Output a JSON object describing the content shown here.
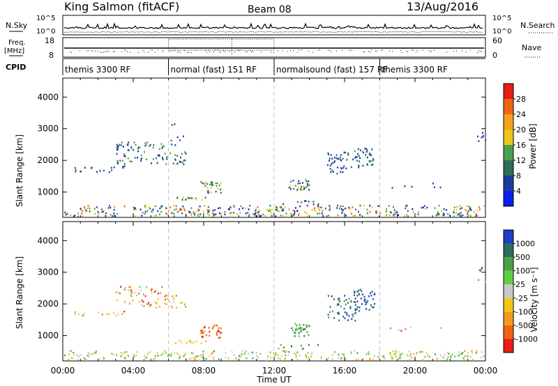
{
  "header": {
    "station": "King Salmon (fitACF)",
    "beam": "Beam 08",
    "date": "13/Aug/2016"
  },
  "top_panels": {
    "nsky_label": "N.Sky",
    "nsearch_label": "N.Search",
    "freq_label_1": "Freq.",
    "freq_label_2": "[MHz]",
    "nave_label": "Nave",
    "cpid_label": "CPID",
    "nsky_ticks": [
      "10^5",
      "10^0"
    ],
    "nsearch_ticks": [
      "10^5",
      "10^0"
    ],
    "freq_ticks": [
      "18",
      "8"
    ],
    "nave_ticks": [
      "60",
      "0"
    ],
    "cpid_segments": [
      {
        "label": "themis 3300 RF",
        "start_hour": 0,
        "end_hour": 6
      },
      {
        "label": "normal (fast) 151 RF",
        "start_hour": 6,
        "end_hour": 12
      },
      {
        "label": "normalsound (fast) 157 RF",
        "start_hour": 12,
        "end_hour": 18
      },
      {
        "label": "themis 3300 RF",
        "start_hour": 18,
        "end_hour": 24
      }
    ]
  },
  "chart_data": [
    {
      "type": "heatmap",
      "title": "Power",
      "ylabel": "Slant Range [km]",
      "xlabel": "Time UT",
      "xlim_hours": [
        0,
        24
      ],
      "ylim": [
        200,
        4600
      ],
      "x_tick_labels": [
        "00:00",
        "04:00",
        "08:00",
        "12:00",
        "16:00",
        "20:00",
        "00:00"
      ],
      "x_tick_hours": [
        0,
        4,
        8,
        12,
        16,
        20,
        24
      ],
      "y_tick_values": [
        1000,
        2000,
        3000,
        4000
      ],
      "y_tick_labels": [
        "1000",
        "2000",
        "3000",
        "4000"
      ],
      "colorbar": {
        "label": "Power [dB]",
        "range": [
          0,
          32
        ],
        "tick_values": [
          4,
          8,
          12,
          16,
          20,
          24,
          28
        ],
        "tick_labels": [
          "4",
          "8",
          "12",
          "16",
          "20",
          "24",
          "28"
        ],
        "colors": [
          "#0a1ef0",
          "#1e3c9e",
          "#2c6e5a",
          "#4aa04a",
          "#e8c61a",
          "#f5a01e",
          "#f06414",
          "#e81e14"
        ]
      },
      "dashed_hours": [
        6,
        12,
        18
      ],
      "regions": [
        {
          "t0": 0.0,
          "t1": 24.0,
          "r0": 250,
          "r1": 600,
          "density": 0.35,
          "vmin": 2,
          "vmax": 26
        },
        {
          "t0": 0.6,
          "t1": 3.5,
          "r0": 1650,
          "r1": 1850,
          "density": 0.25,
          "vmin": 4,
          "vmax": 10
        },
        {
          "t0": 3.0,
          "t1": 5.8,
          "r0": 1900,
          "r1": 2600,
          "density": 0.28,
          "vmin": 4,
          "vmax": 16
        },
        {
          "t0": 5.8,
          "t1": 7.0,
          "r0": 1900,
          "r1": 2300,
          "density": 0.35,
          "vmin": 4,
          "vmax": 14
        },
        {
          "t0": 6.0,
          "t1": 7.0,
          "r0": 2500,
          "r1": 3200,
          "density": 0.1,
          "vmin": 4,
          "vmax": 10
        },
        {
          "t0": 7.8,
          "t1": 9.0,
          "r0": 1000,
          "r1": 1350,
          "density": 0.55,
          "vmin": 6,
          "vmax": 20
        },
        {
          "t0": 6.3,
          "t1": 8.2,
          "r0": 780,
          "r1": 880,
          "density": 0.6,
          "vmin": 6,
          "vmax": 20
        },
        {
          "t0": 12.8,
          "t1": 14.0,
          "r0": 1050,
          "r1": 1450,
          "density": 0.5,
          "vmin": 4,
          "vmax": 18
        },
        {
          "t0": 12.2,
          "t1": 14.5,
          "r0": 600,
          "r1": 750,
          "density": 0.25,
          "vmin": 4,
          "vmax": 10
        },
        {
          "t0": 15.0,
          "t1": 16.6,
          "r0": 1600,
          "r1": 2300,
          "density": 0.3,
          "vmin": 4,
          "vmax": 12
        },
        {
          "t0": 16.5,
          "t1": 17.7,
          "r0": 1800,
          "r1": 2400,
          "density": 0.4,
          "vmin": 4,
          "vmax": 14
        },
        {
          "t0": 18.5,
          "t1": 21.5,
          "r0": 1150,
          "r1": 1300,
          "density": 0.12,
          "vmin": 4,
          "vmax": 8
        },
        {
          "t0": 23.5,
          "t1": 24.0,
          "r0": 2600,
          "r1": 3200,
          "density": 0.2,
          "vmin": 4,
          "vmax": 8
        }
      ]
    },
    {
      "type": "heatmap",
      "title": "Velocity",
      "ylabel": "Slant Range [km]",
      "xlabel": "Time UT",
      "xlim_hours": [
        0,
        24
      ],
      "ylim": [
        200,
        4600
      ],
      "x_tick_labels": [
        "00:00",
        "04:00",
        "08:00",
        "12:00",
        "16:00",
        "20:00",
        "00:00"
      ],
      "x_tick_hours": [
        0,
        4,
        8,
        12,
        16,
        20,
        24
      ],
      "y_tick_values": [
        1000,
        2000,
        3000,
        4000
      ],
      "y_tick_labels": [
        "1000",
        "2000",
        "3000",
        "4000"
      ],
      "colorbar": {
        "label": "Velocity [m s⁻¹]",
        "ticks": [
          "1000",
          "500",
          "100",
          "25",
          "-25",
          "-100",
          "-500",
          "-1000"
        ],
        "colors": [
          "#1e3cc8",
          "#2c6e5a",
          "#4aa04a",
          "#5cd03c",
          "#c8c8c8",
          "#f0c814",
          "#f59a1e",
          "#f06414",
          "#e81e14"
        ]
      },
      "dashed_hours": [
        6,
        12,
        18
      ],
      "regions": [
        {
          "t0": 0.0,
          "t1": 24.0,
          "r0": 250,
          "r1": 550,
          "density": 0.3,
          "cmin": 2,
          "cmax": 6
        },
        {
          "t0": 0.6,
          "t1": 3.5,
          "r0": 1650,
          "r1": 1850,
          "density": 0.2,
          "cmin": 3,
          "cmax": 8
        },
        {
          "t0": 3.0,
          "t1": 5.8,
          "r0": 1900,
          "r1": 2600,
          "density": 0.25,
          "cmin": 3,
          "cmax": 8
        },
        {
          "t0": 5.8,
          "t1": 7.0,
          "r0": 1900,
          "r1": 2300,
          "density": 0.3,
          "cmin": 3,
          "cmax": 7
        },
        {
          "t0": 7.8,
          "t1": 9.0,
          "r0": 950,
          "r1": 1350,
          "density": 0.6,
          "cmin": 6,
          "cmax": 8
        },
        {
          "t0": 6.3,
          "t1": 8.2,
          "r0": 780,
          "r1": 880,
          "density": 0.6,
          "cmin": 4,
          "cmax": 6
        },
        {
          "t0": 12.8,
          "t1": 14.0,
          "r0": 1000,
          "r1": 1450,
          "density": 0.5,
          "cmin": 1,
          "cmax": 3
        },
        {
          "t0": 12.2,
          "t1": 14.5,
          "r0": 600,
          "r1": 750,
          "density": 0.25,
          "cmin": 1,
          "cmax": 3
        },
        {
          "t0": 15.0,
          "t1": 16.6,
          "r0": 1500,
          "r1": 2300,
          "density": 0.3,
          "cmin": 0,
          "cmax": 2
        },
        {
          "t0": 16.5,
          "t1": 17.7,
          "r0": 1800,
          "r1": 2500,
          "density": 0.4,
          "cmin": 0,
          "cmax": 1
        },
        {
          "t0": 18.5,
          "t1": 21.5,
          "r0": 1150,
          "r1": 1300,
          "density": 0.12,
          "cmin": 4,
          "cmax": 8
        },
        {
          "t0": 23.5,
          "t1": 24.0,
          "r0": 2600,
          "r1": 3200,
          "density": 0.2,
          "cmin": 1,
          "cmax": 4
        }
      ]
    }
  ]
}
